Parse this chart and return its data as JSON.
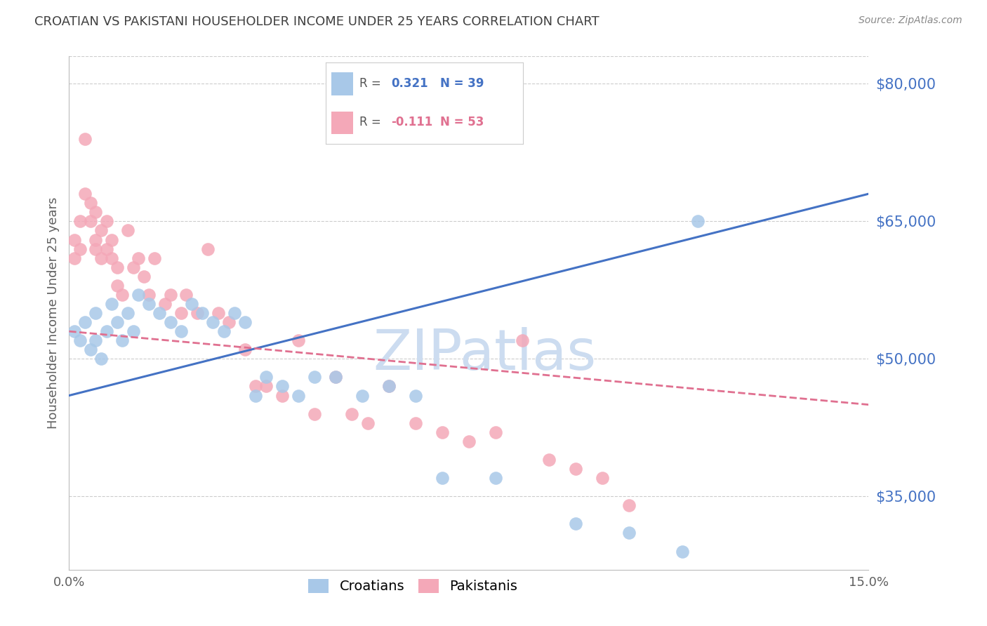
{
  "title": "CROATIAN VS PAKISTANI HOUSEHOLDER INCOME UNDER 25 YEARS CORRELATION CHART",
  "source": "Source: ZipAtlas.com",
  "ylabel": "Householder Income Under 25 years",
  "xlim": [
    0.0,
    0.15
  ],
  "ylim": [
    27000,
    83000
  ],
  "yticks": [
    35000,
    50000,
    65000,
    80000
  ],
  "ytick_labels": [
    "$35,000",
    "$50,000",
    "$65,000",
    "$80,000"
  ],
  "croatian_R": 0.321,
  "croatian_N": 39,
  "pakistani_R": -0.111,
  "pakistani_N": 53,
  "blue_color": "#a8c8e8",
  "pink_color": "#f4a8b8",
  "blue_line_color": "#4472c4",
  "pink_line_color": "#e07090",
  "title_color": "#404040",
  "axis_label_color": "#606060",
  "tick_label_color": "#4472c4",
  "grid_color": "#cccccc",
  "background_color": "#ffffff",
  "watermark_color": "#ccdcf0",
  "croatian_x": [
    0.001,
    0.002,
    0.003,
    0.004,
    0.005,
    0.005,
    0.006,
    0.007,
    0.008,
    0.009,
    0.01,
    0.011,
    0.012,
    0.013,
    0.015,
    0.017,
    0.019,
    0.021,
    0.023,
    0.025,
    0.027,
    0.029,
    0.031,
    0.033,
    0.035,
    0.037,
    0.04,
    0.043,
    0.046,
    0.05,
    0.055,
    0.06,
    0.065,
    0.07,
    0.08,
    0.095,
    0.105,
    0.115,
    0.118
  ],
  "croatian_y": [
    53000,
    52000,
    54000,
    51000,
    55000,
    52000,
    50000,
    53000,
    56000,
    54000,
    52000,
    55000,
    53000,
    57000,
    56000,
    55000,
    54000,
    53000,
    56000,
    55000,
    54000,
    53000,
    55000,
    54000,
    46000,
    48000,
    47000,
    46000,
    48000,
    48000,
    46000,
    47000,
    46000,
    37000,
    37000,
    32000,
    31000,
    29000,
    65000
  ],
  "pakistani_x": [
    0.001,
    0.001,
    0.002,
    0.002,
    0.003,
    0.003,
    0.004,
    0.004,
    0.005,
    0.005,
    0.005,
    0.006,
    0.006,
    0.007,
    0.007,
    0.008,
    0.008,
    0.009,
    0.009,
    0.01,
    0.011,
    0.012,
    0.013,
    0.014,
    0.015,
    0.016,
    0.018,
    0.019,
    0.021,
    0.022,
    0.024,
    0.026,
    0.028,
    0.03,
    0.033,
    0.035,
    0.037,
    0.04,
    0.043,
    0.046,
    0.05,
    0.053,
    0.056,
    0.06,
    0.065,
    0.07,
    0.075,
    0.08,
    0.085,
    0.09,
    0.095,
    0.1,
    0.105
  ],
  "pakistani_y": [
    63000,
    61000,
    65000,
    62000,
    74000,
    68000,
    67000,
    65000,
    66000,
    63000,
    62000,
    64000,
    61000,
    65000,
    62000,
    63000,
    61000,
    60000,
    58000,
    57000,
    64000,
    60000,
    61000,
    59000,
    57000,
    61000,
    56000,
    57000,
    55000,
    57000,
    55000,
    62000,
    55000,
    54000,
    51000,
    47000,
    47000,
    46000,
    52000,
    44000,
    48000,
    44000,
    43000,
    47000,
    43000,
    42000,
    41000,
    42000,
    52000,
    39000,
    38000,
    37000,
    34000
  ],
  "croatian_line_x": [
    0.0,
    0.15
  ],
  "croatian_line_y": [
    46000,
    68000
  ],
  "pakistani_line_x": [
    0.0,
    0.15
  ],
  "pakistani_line_y": [
    53000,
    45000
  ]
}
